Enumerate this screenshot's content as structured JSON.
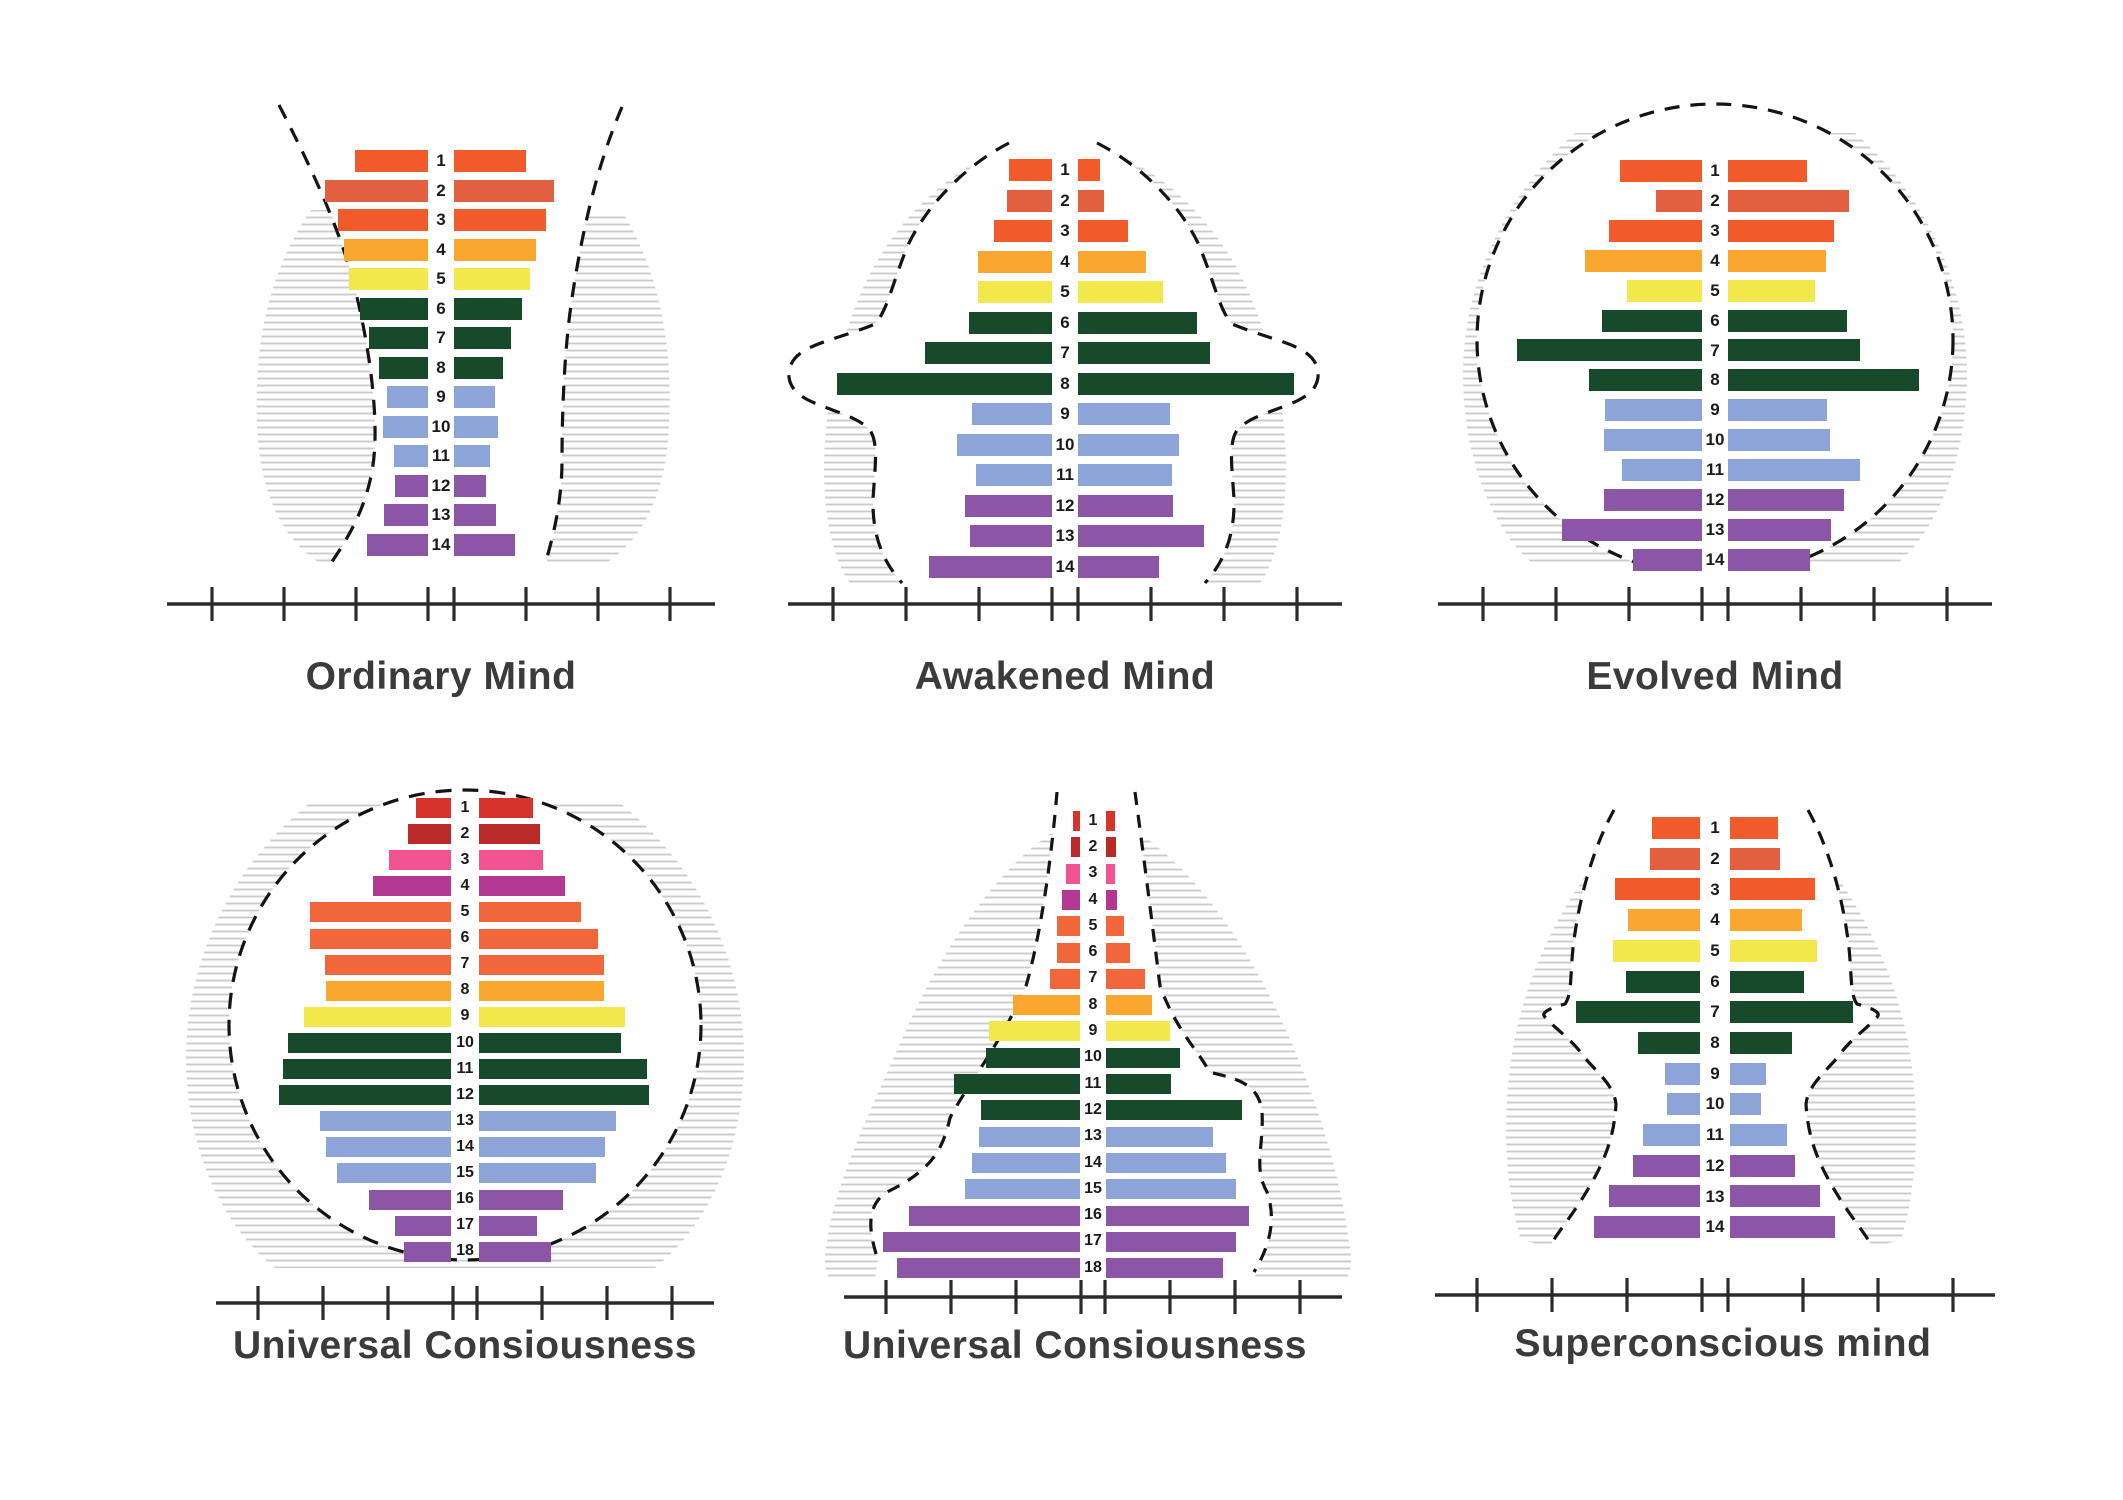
{
  "page": {
    "background": "#ffffff"
  },
  "palette": {
    "vermillion": "#F15A2B",
    "vermillion_dark": "#E2603F",
    "amber": "#F9A72E",
    "yellow": "#F2E74B",
    "green": "#17492B",
    "periwinkle": "#8DA4D9",
    "purple": "#8C55A6",
    "red": "#D6342B",
    "dark_red": "#B92B28",
    "pink": "#F0538F",
    "magenta": "#B23893",
    "orange": "#F2663B",
    "hatch_line": "#CBCBCB",
    "dash_line": "#141414",
    "axis_line": "#2b2b2b",
    "label_text": "#1a1a1a",
    "title_text": "#3b3b3b"
  },
  "axis_note": "axes show unlabeled tick marks only, 4 ticks per side plus a double tick at center",
  "chart_data": [
    {
      "type": "bar",
      "variant": "population-pyramid",
      "title": "Ordinary Mind",
      "units": "px (estimated from image, no numeric axis labels shown)",
      "categories": [
        1,
        2,
        3,
        4,
        5,
        6,
        7,
        8,
        9,
        10,
        11,
        12,
        13,
        14
      ],
      "series": [
        {
          "name": "left",
          "values": [
            73,
            103,
            90,
            84,
            79,
            68,
            59,
            49,
            41,
            45,
            34,
            33,
            44,
            61
          ]
        },
        {
          "name": "right",
          "values": [
            72,
            100,
            92,
            82,
            76,
            68,
            57,
            49,
            41,
            44,
            36,
            32,
            42,
            61
          ]
        }
      ],
      "row_colors": [
        "vermillion",
        "vermillion_dark",
        "vermillion",
        "amber",
        "yellow",
        "green",
        "green",
        "green",
        "periwinkle",
        "periwinkle",
        "periwinkle",
        "purple",
        "purple",
        "purple"
      ],
      "silhouette": "vase-neck profile, hatched bands outside dashed curves"
    },
    {
      "type": "bar",
      "variant": "population-pyramid",
      "title": "Awakened Mind",
      "units": "px (estimated from image, no numeric axis labels shown)",
      "categories": [
        1,
        2,
        3,
        4,
        5,
        6,
        7,
        8,
        9,
        10,
        11,
        12,
        13,
        14
      ],
      "series": [
        {
          "name": "left",
          "values": [
            43,
            45,
            58,
            74,
            74,
            83,
            127,
            215,
            80,
            95,
            76,
            87,
            82,
            123
          ]
        },
        {
          "name": "right",
          "values": [
            22,
            26,
            50,
            68,
            85,
            119,
            132,
            216,
            92,
            101,
            94,
            95,
            126,
            81
          ]
        }
      ],
      "row_colors": [
        "vermillion",
        "vermillion_dark",
        "vermillion",
        "amber",
        "yellow",
        "green",
        "green",
        "green",
        "periwinkle",
        "periwinkle",
        "periwinkle",
        "purple",
        "purple",
        "purple"
      ],
      "silhouette": "domed head with winged flare at row 8, hatching outside outline"
    },
    {
      "type": "bar",
      "variant": "population-pyramid",
      "title": "Evolved Mind",
      "units": "px (estimated from image, no numeric axis labels shown)",
      "categories": [
        1,
        2,
        3,
        4,
        5,
        6,
        7,
        8,
        9,
        10,
        11,
        12,
        13,
        14
      ],
      "series": [
        {
          "name": "left",
          "values": [
            82,
            46,
            93,
            117,
            75,
            100,
            185,
            113,
            97,
            98,
            80,
            98,
            140,
            69
          ]
        },
        {
          "name": "right",
          "values": [
            79,
            121,
            106,
            98,
            87,
            119,
            132,
            191,
            99,
            102,
            132,
            116,
            103,
            82
          ]
        }
      ],
      "row_colors": [
        "vermillion",
        "vermillion_dark",
        "vermillion",
        "amber",
        "yellow",
        "green",
        "green",
        "green",
        "periwinkle",
        "periwinkle",
        "periwinkle",
        "purple",
        "purple",
        "purple"
      ],
      "silhouette": "large dashed circle, hatched crescents at sides"
    },
    {
      "type": "bar",
      "variant": "population-pyramid",
      "title": "Universal Consiousness",
      "units": "px (estimated from image, no numeric axis labels shown)",
      "categories": [
        1,
        2,
        3,
        4,
        5,
        6,
        7,
        8,
        9,
        10,
        11,
        12,
        13,
        14,
        15,
        16,
        17,
        18
      ],
      "series": [
        {
          "name": "left",
          "values": [
            35,
            43,
            62,
            78,
            141,
            141,
            126,
            125,
            147,
            163,
            168,
            172,
            131,
            125,
            114,
            82,
            56,
            47
          ]
        },
        {
          "name": "right",
          "values": [
            54,
            61,
            64,
            86,
            102,
            119,
            125,
            125,
            146,
            142,
            168,
            170,
            137,
            126,
            117,
            84,
            58,
            72
          ]
        }
      ],
      "row_colors": [
        "red",
        "dark_red",
        "pink",
        "magenta",
        "orange",
        "orange",
        "orange",
        "amber",
        "yellow",
        "green",
        "green",
        "green",
        "periwinkle",
        "periwinkle",
        "periwinkle",
        "purple",
        "purple",
        "purple"
      ],
      "silhouette": "large dashed circle, hatched crescents at sides"
    },
    {
      "type": "bar",
      "variant": "population-pyramid",
      "title": "Universal Consiousness",
      "units": "px (estimated from image, no numeric axis labels shown)",
      "categories": [
        1,
        2,
        3,
        4,
        5,
        6,
        7,
        8,
        9,
        10,
        11,
        12,
        13,
        14,
        15,
        16,
        17,
        18
      ],
      "series": [
        {
          "name": "left",
          "values": [
            7,
            9,
            14,
            18,
            23,
            23,
            30,
            67,
            91,
            94,
            126,
            99,
            101,
            108,
            115,
            171,
            197,
            183
          ]
        },
        {
          "name": "right",
          "values": [
            9,
            10,
            9,
            11,
            18,
            24,
            39,
            46,
            64,
            74,
            65,
            136,
            107,
            120,
            130,
            143,
            130,
            117
          ]
        }
      ],
      "row_colors": [
        "red",
        "dark_red",
        "pink",
        "magenta",
        "orange",
        "orange",
        "orange",
        "amber",
        "yellow",
        "green",
        "green",
        "green",
        "periwinkle",
        "periwinkle",
        "periwinkle",
        "purple",
        "purple",
        "purple"
      ],
      "silhouette": "narrow neck widening to broad base, hatching outside outline"
    },
    {
      "type": "bar",
      "variant": "population-pyramid",
      "title": "Superconscious mind",
      "units": "px (estimated from image, no numeric axis labels shown)",
      "categories": [
        1,
        2,
        3,
        4,
        5,
        6,
        7,
        8,
        9,
        10,
        11,
        12,
        13,
        14
      ],
      "series": [
        {
          "name": "left",
          "values": [
            48,
            50,
            85,
            72,
            87,
            74,
            124,
            62,
            35,
            33,
            57,
            67,
            91,
            106
          ]
        },
        {
          "name": "right",
          "values": [
            48,
            50,
            85,
            72,
            87,
            74,
            123,
            62,
            36,
            31,
            57,
            65,
            90,
            105
          ]
        }
      ],
      "row_colors": [
        "vermillion",
        "vermillion_dark",
        "vermillion",
        "amber",
        "yellow",
        "green",
        "green",
        "green",
        "periwinkle",
        "periwinkle",
        "periwinkle",
        "purple",
        "purple",
        "purple"
      ],
      "silhouette": "arrowhead profile pinched at middle, hatched bands outside"
    }
  ]
}
